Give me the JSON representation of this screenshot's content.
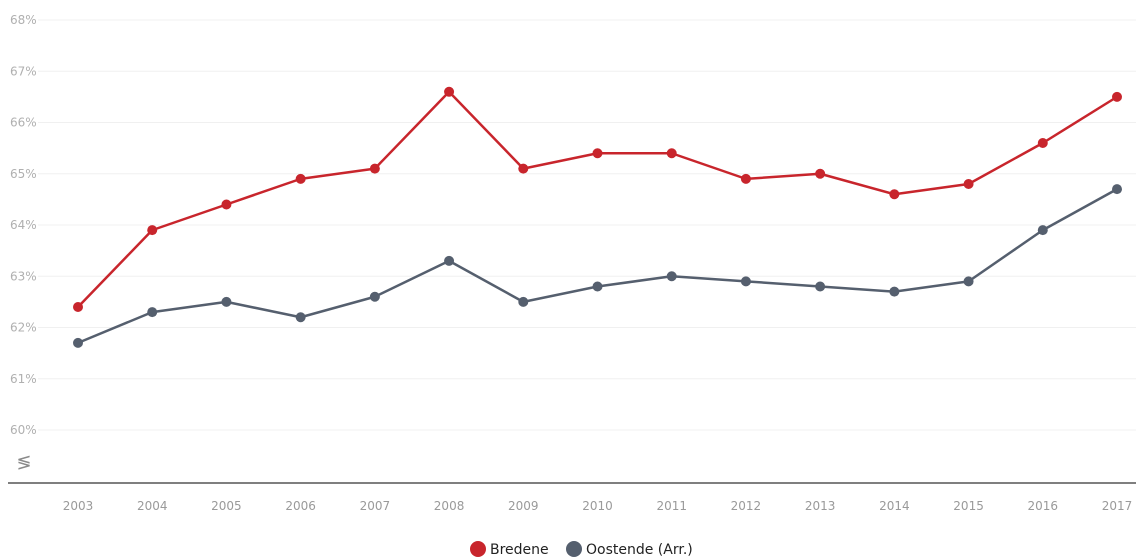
{
  "chart_data": {
    "type": "line",
    "x": [
      "2003",
      "2004",
      "2005",
      "2006",
      "2007",
      "2008",
      "2009",
      "2010",
      "2011",
      "2012",
      "2013",
      "2014",
      "2015",
      "2016",
      "2017"
    ],
    "series": [
      {
        "name": "Bredene",
        "color": "#c8252c",
        "values": [
          62.4,
          63.9,
          64.4,
          64.9,
          65.1,
          66.6,
          65.1,
          65.4,
          65.4,
          64.9,
          65.0,
          64.6,
          64.8,
          65.6,
          66.5
        ]
      },
      {
        "name": "Oostende (Arr.)",
        "color": "#555f6e",
        "values": [
          61.7,
          62.3,
          62.5,
          62.2,
          62.6,
          63.3,
          62.5,
          62.8,
          63.0,
          62.9,
          62.8,
          62.7,
          62.9,
          63.9,
          64.7
        ]
      }
    ],
    "y_ticks": [
      "60%",
      "61%",
      "62%",
      "63%",
      "64%",
      "65%",
      "66%",
      "67%",
      "68%"
    ],
    "ylim": [
      60,
      68
    ],
    "axis_break_symbol": "≶",
    "grid": true,
    "legend_position": "bottom-center"
  }
}
